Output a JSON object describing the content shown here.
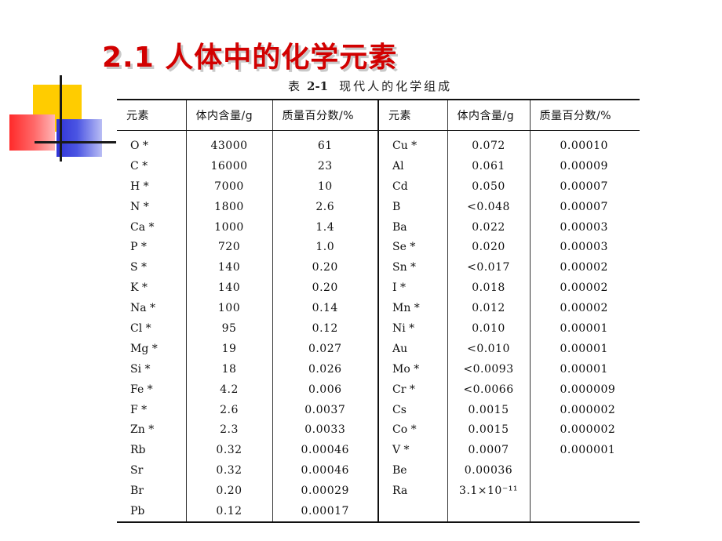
{
  "title": "2.1  人体中的化学元素",
  "caption": {
    "prefix": "表",
    "number": "2-1",
    "text": "现代人的化学组成"
  },
  "table": {
    "headers": [
      "元素",
      "体内含量/g",
      "质量百分数/%",
      "元素",
      "体内含量/g",
      "质量百分数/%"
    ],
    "rows": [
      [
        "O *",
        "43000",
        "61",
        "Cu *",
        "0.072",
        "0.00010"
      ],
      [
        "C *",
        "16000",
        "23",
        "Al",
        "0.061",
        "0.00009"
      ],
      [
        "H *",
        "7000",
        "10",
        "Cd",
        "0.050",
        "0.00007"
      ],
      [
        "N *",
        "1800",
        "2.6",
        "B",
        "<0.048",
        "0.00007"
      ],
      [
        "Ca *",
        "1000",
        "1.4",
        "Ba",
        "0.022",
        "0.00003"
      ],
      [
        "P *",
        "720",
        "1.0",
        "Se *",
        "0.020",
        "0.00003"
      ],
      [
        "S *",
        "140",
        "0.20",
        "Sn *",
        "<0.017",
        "0.00002"
      ],
      [
        "K *",
        "140",
        "0.20",
        "I *",
        "0.018",
        "0.00002"
      ],
      [
        "Na *",
        "100",
        "0.14",
        "Mn *",
        "0.012",
        "0.00002"
      ],
      [
        "Cl *",
        "95",
        "0.12",
        "Ni *",
        "0.010",
        "0.00001"
      ],
      [
        "Mg *",
        "19",
        "0.027",
        "Au",
        "<0.010",
        "0.00001"
      ],
      [
        "Si *",
        "18",
        "0.026",
        "Mo *",
        "<0.0093",
        "0.00001"
      ],
      [
        "Fe *",
        "4.2",
        "0.006",
        "Cr *",
        "<0.0066",
        "0.000009"
      ],
      [
        "F *",
        "2.6",
        "0.0037",
        "Cs",
        "0.0015",
        "0.000002"
      ],
      [
        "Zn *",
        "2.3",
        "0.0033",
        "Co *",
        "0.0015",
        "0.000002"
      ],
      [
        "Rb",
        "0.32",
        "0.00046",
        "V *",
        "0.0007",
        "0.000001"
      ],
      [
        "Sr",
        "0.32",
        "0.00046",
        "Be",
        "0.00036",
        ""
      ],
      [
        "Br",
        "0.20",
        "0.00029",
        "Ra",
        "3.1×10⁻¹¹",
        ""
      ],
      [
        "Pb",
        "0.12",
        "0.00017",
        "",
        "",
        ""
      ]
    ]
  },
  "colors": {
    "title": "#d20000",
    "yellow": "#ffcc00",
    "red": "#ff2a2a",
    "blue": "#2f33d6"
  }
}
